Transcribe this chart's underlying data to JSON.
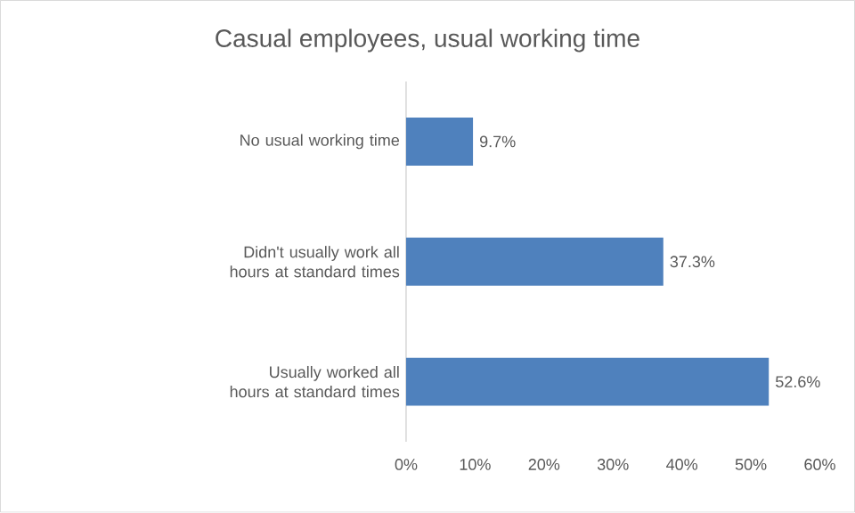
{
  "chart_data": {
    "type": "bar",
    "orientation": "horizontal",
    "title": "Casual employees, usual working time",
    "categories": [
      "No usual working time",
      "Didn't usually work all hours at standard times",
      "Usually worked all hours at standard times"
    ],
    "values": [
      9.7,
      37.3,
      52.6
    ],
    "value_labels": [
      "9.7%",
      "37.3%",
      "52.6%"
    ],
    "color": "#4f81bd",
    "xlim": [
      0,
      60
    ],
    "xticks": [
      {
        "value": 0,
        "label": "0%"
      },
      {
        "value": 10,
        "label": "10%"
      },
      {
        "value": 20,
        "label": "20%"
      },
      {
        "value": 30,
        "label": "30%"
      },
      {
        "value": 40,
        "label": "40%"
      },
      {
        "value": 50,
        "label": "50%"
      },
      {
        "value": 60,
        "label": "60%"
      }
    ]
  }
}
